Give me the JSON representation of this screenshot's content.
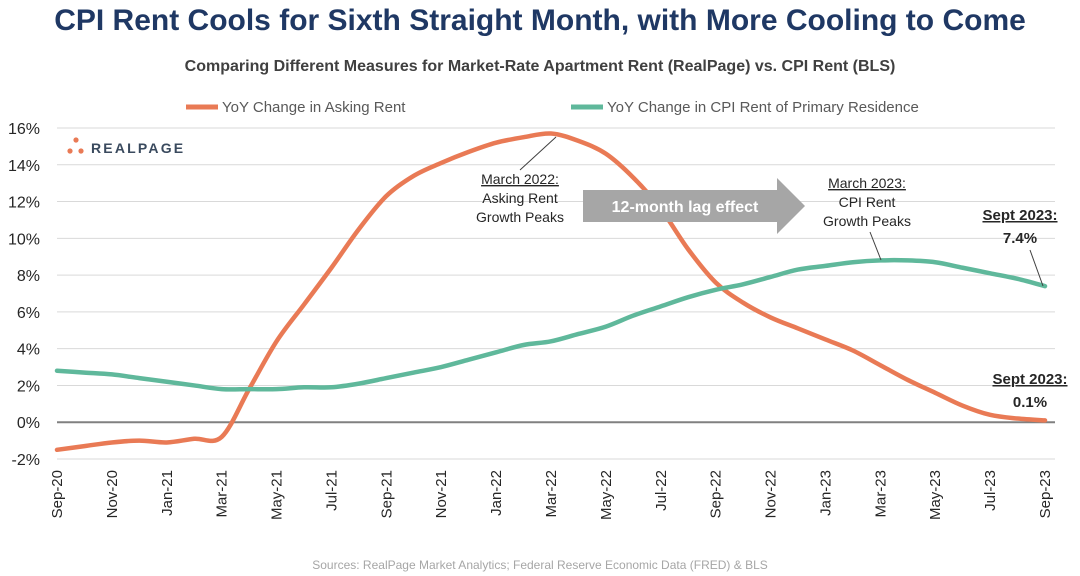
{
  "title": "CPI Rent Cools for Sixth Straight Month, with More Cooling to Come",
  "subtitle": "Comparing Different Measures for Market-Rate Apartment Rent (RealPage) vs. CPI Rent (BLS)",
  "source": "Sources: RealPage Market Analytics; Federal Reserve Economic Data (FRED) & BLS",
  "logo": {
    "text": "REALPAGE",
    "icon": "realpage-dots-icon"
  },
  "colors": {
    "asking": "#e97a55",
    "cpi": "#5fb89b",
    "title": "#1f3864",
    "arrow": "#a6a6a6"
  },
  "annotations": {
    "asking_peak": {
      "line1": "March 2022:",
      "line2": "Asking Rent",
      "line3": "Growth Peaks"
    },
    "cpi_peak": {
      "line1": "March 2023:",
      "line2": "CPI Rent",
      "line3": "Growth Peaks"
    },
    "lag": "12-month lag effect",
    "cpi_end": {
      "line1": "Sept 2023:",
      "line2": "7.4%"
    },
    "asking_end": {
      "line1": "Sept 2023:",
      "line2": "0.1%"
    }
  },
  "chart_data": {
    "type": "line",
    "x": [
      "Sep-20",
      "Oct-20",
      "Nov-20",
      "Dec-20",
      "Jan-21",
      "Feb-21",
      "Mar-21",
      "Apr-21",
      "May-21",
      "Jun-21",
      "Jul-21",
      "Aug-21",
      "Sep-21",
      "Oct-21",
      "Nov-21",
      "Dec-21",
      "Jan-22",
      "Feb-22",
      "Mar-22",
      "Apr-22",
      "May-22",
      "Jun-22",
      "Jul-22",
      "Aug-22",
      "Sep-22",
      "Oct-22",
      "Nov-22",
      "Dec-22",
      "Jan-23",
      "Feb-23",
      "Mar-23",
      "Apr-23",
      "May-23",
      "Jun-23",
      "Jul-23",
      "Aug-23",
      "Sep-23"
    ],
    "tick_labels": [
      "Sep-20",
      "Nov-20",
      "Jan-21",
      "Mar-21",
      "May-21",
      "Jul-21",
      "Sep-21",
      "Nov-21",
      "Jan-22",
      "Mar-22",
      "May-22",
      "Jul-22",
      "Sep-22",
      "Nov-22",
      "Jan-23",
      "Mar-23",
      "May-23",
      "Jul-23",
      "Sep-23"
    ],
    "series": [
      {
        "name": "YoY Change in Asking Rent",
        "values": [
          -1.5,
          -1.3,
          -1.1,
          -1.0,
          -1.1,
          -0.9,
          -0.8,
          1.8,
          4.4,
          6.4,
          8.4,
          10.5,
          12.3,
          13.4,
          14.1,
          14.7,
          15.2,
          15.5,
          15.7,
          15.3,
          14.6,
          13.3,
          11.6,
          9.4,
          7.6,
          6.5,
          5.7,
          5.1,
          4.5,
          3.9,
          3.1,
          2.3,
          1.6,
          0.9,
          0.4,
          0.2,
          0.1
        ]
      },
      {
        "name": "YoY Change in CPI Rent of Primary Residence",
        "values": [
          2.8,
          2.7,
          2.6,
          2.4,
          2.2,
          2.0,
          1.8,
          1.8,
          1.8,
          1.9,
          1.9,
          2.1,
          2.4,
          2.7,
          3.0,
          3.4,
          3.8,
          4.2,
          4.4,
          4.8,
          5.2,
          5.8,
          6.3,
          6.8,
          7.2,
          7.5,
          7.9,
          8.3,
          8.5,
          8.7,
          8.8,
          8.8,
          8.7,
          8.4,
          8.1,
          7.8,
          7.4
        ]
      }
    ],
    "ylim": [
      -2,
      16
    ],
    "yticks": [
      -2,
      0,
      2,
      4,
      6,
      8,
      10,
      12,
      14,
      16
    ],
    "ytick_suffix": "%",
    "grid": "horizontal",
    "legend": "top"
  }
}
